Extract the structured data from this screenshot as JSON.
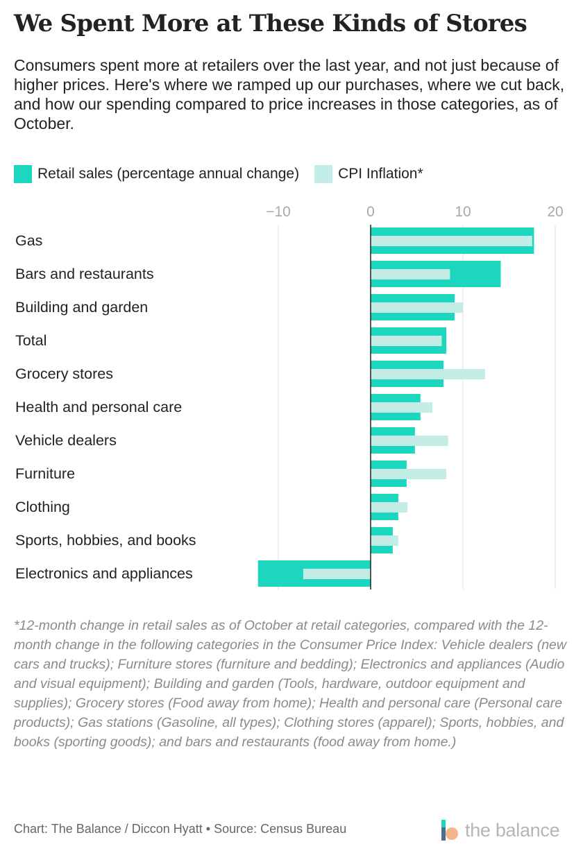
{
  "title": "We Spent More at These Kinds of Stores",
  "subtitle": "Consumers spent more at retailers over the last year, and not just because of higher prices. Here's where we ramped up our purchases, where we cut back, and how our spending compared to price increases in those categories, as of October.",
  "colors": {
    "retail": "#1dd6c0",
    "cpi": "#c3ece6",
    "grid": "#e2e2e2",
    "axis": "#222222",
    "tick": "#a9a9a9"
  },
  "chart_data": {
    "type": "bar",
    "orientation": "horizontal",
    "categories": [
      "Gas",
      "Bars and restaurants",
      "Building and garden",
      "Total",
      "Grocery stores",
      "Health and personal care",
      "Vehicle dealers",
      "Furniture",
      "Clothing",
      "Sports, hobbies, and books",
      "Electronics and appliances"
    ],
    "series": [
      {
        "name": "Retail sales (percentage annual change)",
        "values": [
          17.7,
          14.1,
          9.1,
          8.2,
          7.9,
          5.4,
          4.8,
          3.9,
          3.0,
          2.4,
          -12.2
        ]
      },
      {
        "name": "CPI Inflation*",
        "values": [
          17.5,
          8.6,
          10.0,
          7.7,
          12.4,
          6.7,
          8.4,
          8.2,
          4.0,
          3.0,
          -7.3
        ]
      }
    ],
    "xlim": [
      -12.2,
      20
    ],
    "xticks": [
      -10,
      0,
      10,
      20
    ],
    "xtick_labels": [
      "−10",
      "0",
      "10",
      "20"
    ],
    "grid": true,
    "legend_position": "top-left"
  },
  "notes": "*12-month change in retail sales as of October at retail categories, compared with the 12-month change in the following categories in the Consumer Price Index: Vehicle dealers (new cars and trucks); Furniture stores (furniture and bedding); Electronics and appliances (Audio and visual equipment); Building and garden (Tools, hardware, outdoor equipment and supplies); Grocery stores (Food away from home); Health and personal care (Personal care products); Gas stations (Gasoline, all types); Clothing stores (apparel); Sports, hobbies, and books (sporting goods); and bars and restaurants (food away from home.)",
  "credit": "Chart: The Balance / Diccon Hyatt • Source: Census Bureau",
  "logo": {
    "text": "the balance"
  }
}
